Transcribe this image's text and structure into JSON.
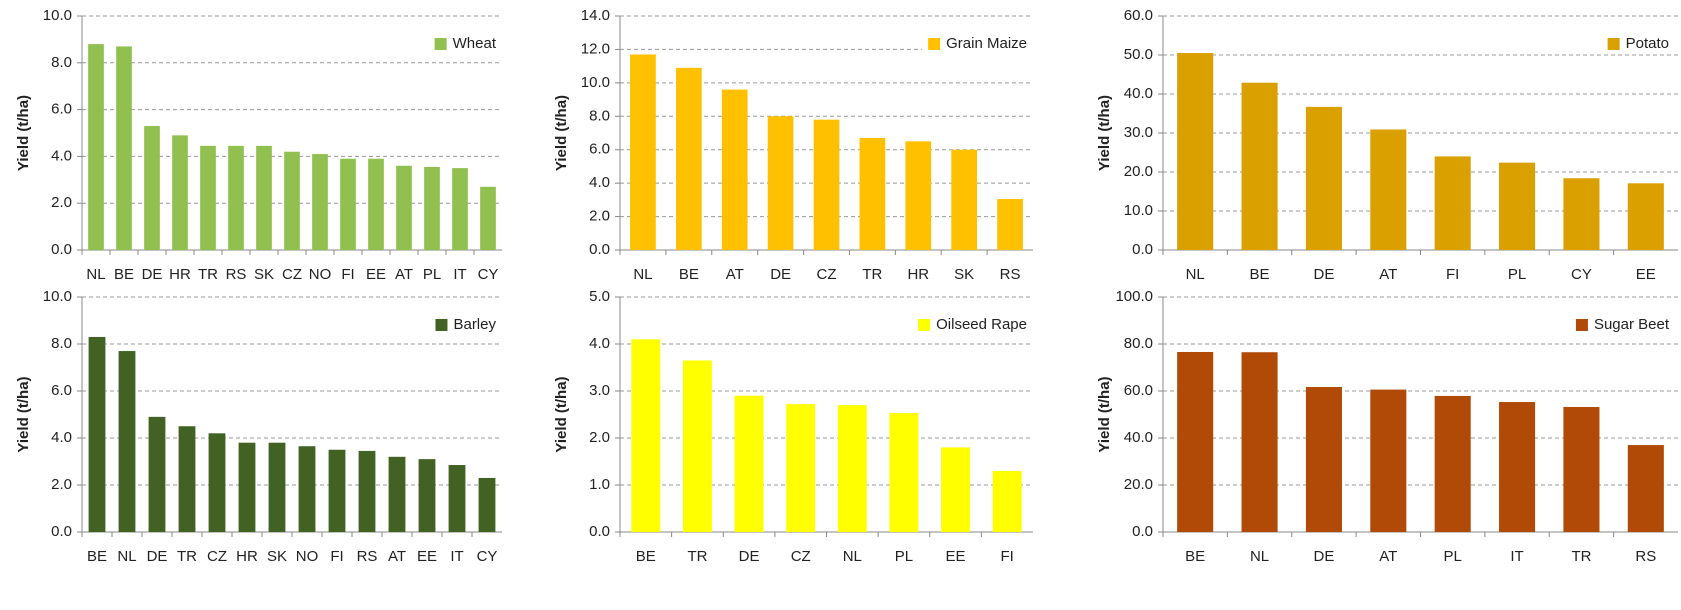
{
  "chart_data": [
    {
      "type": "bar",
      "y_label": "Yield (t/ha)",
      "categories": [
        "NL",
        "BE",
        "DE",
        "HR",
        "TR",
        "RS",
        "SK",
        "CZ",
        "NO",
        "FI",
        "EE",
        "AT",
        "PL",
        "IT",
        "CY"
      ],
      "series": [
        {
          "name": "Wheat",
          "color": "#92c050",
          "values": [
            8.8,
            8.7,
            5.3,
            4.9,
            4.45,
            4.45,
            4.45,
            4.2,
            4.1,
            3.9,
            3.9,
            3.6,
            3.55,
            3.5,
            2.7
          ]
        }
      ],
      "ylim": [
        0,
        10
      ],
      "yticks": [
        {
          "value": 0,
          "label": "0.0"
        },
        {
          "value": 2,
          "label": "2.0"
        },
        {
          "value": 4,
          "label": "4.0"
        },
        {
          "value": 6,
          "label": "6.0"
        },
        {
          "value": 8,
          "label": "8.0"
        },
        {
          "value": 10,
          "label": "10.0"
        }
      ],
      "grid": true,
      "legend": "top-right"
    },
    {
      "type": "bar",
      "y_label": "Yield (t/ha)",
      "categories": [
        "NL",
        "BE",
        "AT",
        "DE",
        "CZ",
        "TR",
        "HR",
        "SK",
        "RS"
      ],
      "series": [
        {
          "name": "Grain Maize",
          "color": "#ffc000",
          "values": [
            11.7,
            10.9,
            9.6,
            8.0,
            7.8,
            6.7,
            6.5,
            6.0,
            3.05
          ]
        }
      ],
      "ylim": [
        0,
        14
      ],
      "yticks": [
        {
          "value": 0,
          "label": "0.0"
        },
        {
          "value": 2,
          "label": "2.0"
        },
        {
          "value": 4,
          "label": "4.0"
        },
        {
          "value": 6,
          "label": "6.0"
        },
        {
          "value": 8,
          "label": "8.0"
        },
        {
          "value": 10,
          "label": "10.0"
        },
        {
          "value": 12,
          "label": "12.0"
        },
        {
          "value": 14,
          "label": "14.0"
        }
      ],
      "grid": true,
      "legend": "top-right"
    },
    {
      "type": "bar",
      "y_label": "Yield (t/ha)",
      "categories": [
        "NL",
        "BE",
        "DE",
        "AT",
        "FI",
        "PL",
        "CY",
        "EE"
      ],
      "series": [
        {
          "name": "Potato",
          "color": "#daa000",
          "values": [
            50.5,
            42.9,
            36.7,
            30.9,
            24.0,
            22.4,
            18.4,
            17.1
          ]
        }
      ],
      "ylim": [
        0,
        60
      ],
      "yticks": [
        {
          "value": 0,
          "label": "0.0"
        },
        {
          "value": 10,
          "label": "10.0"
        },
        {
          "value": 20,
          "label": "20.0"
        },
        {
          "value": 30,
          "label": "30.0"
        },
        {
          "value": 40,
          "label": "40.0"
        },
        {
          "value": 50,
          "label": "50.0"
        },
        {
          "value": 60,
          "label": "60.0"
        }
      ],
      "grid": true,
      "legend": "top-right"
    },
    {
      "type": "bar",
      "y_label": "Yield (t/ha)",
      "categories": [
        "BE",
        "NL",
        "DE",
        "TR",
        "CZ",
        "HR",
        "SK",
        "NO",
        "FI",
        "RS",
        "AT",
        "EE",
        "IT",
        "CY"
      ],
      "series": [
        {
          "name": "Barley",
          "color": "#426224",
          "values": [
            8.3,
            7.7,
            4.9,
            4.5,
            4.2,
            3.8,
            3.8,
            3.65,
            3.5,
            3.45,
            3.2,
            3.1,
            2.85,
            2.3
          ]
        }
      ],
      "ylim": [
        0,
        10
      ],
      "yticks": [
        {
          "value": 0,
          "label": "0.0"
        },
        {
          "value": 2,
          "label": "2.0"
        },
        {
          "value": 4,
          "label": "4.0"
        },
        {
          "value": 6,
          "label": "6.0"
        },
        {
          "value": 8,
          "label": "8.0"
        },
        {
          "value": 10,
          "label": "10.0"
        }
      ],
      "grid": true,
      "legend": "top-right"
    },
    {
      "type": "bar",
      "y_label": "Yield (t/ha)",
      "categories": [
        "BE",
        "TR",
        "DE",
        "CZ",
        "NL",
        "PL",
        "EE",
        "FI"
      ],
      "series": [
        {
          "name": "Oilseed Rape",
          "color": "#ffff00",
          "values": [
            4.1,
            3.65,
            2.9,
            2.72,
            2.7,
            2.53,
            1.8,
            1.3
          ]
        }
      ],
      "ylim": [
        0,
        5
      ],
      "yticks": [
        {
          "value": 0,
          "label": "0.0"
        },
        {
          "value": 1,
          "label": "1.0"
        },
        {
          "value": 2,
          "label": "2.0"
        },
        {
          "value": 3,
          "label": "3.0"
        },
        {
          "value": 4,
          "label": "4.0"
        },
        {
          "value": 5,
          "label": "5.0"
        }
      ],
      "grid": true,
      "legend": "top-right"
    },
    {
      "type": "bar",
      "y_label": "Yield (t/ha)",
      "categories": [
        "BE",
        "NL",
        "DE",
        "AT",
        "PL",
        "IT",
        "TR",
        "RS"
      ],
      "series": [
        {
          "name": "Sugar Beet",
          "color": "#b04a06",
          "values": [
            76.6,
            76.5,
            61.7,
            60.6,
            57.9,
            55.3,
            53.2,
            37.0
          ]
        }
      ],
      "ylim": [
        0,
        100
      ],
      "yticks": [
        {
          "value": 0,
          "label": "0.0"
        },
        {
          "value": 20,
          "label": "20.0"
        },
        {
          "value": 40,
          "label": "40.0"
        },
        {
          "value": 60,
          "label": "60.0"
        },
        {
          "value": 80,
          "label": "80.0"
        },
        {
          "value": 100,
          "label": "100.0"
        }
      ],
      "grid": true,
      "legend": "top-right"
    }
  ]
}
